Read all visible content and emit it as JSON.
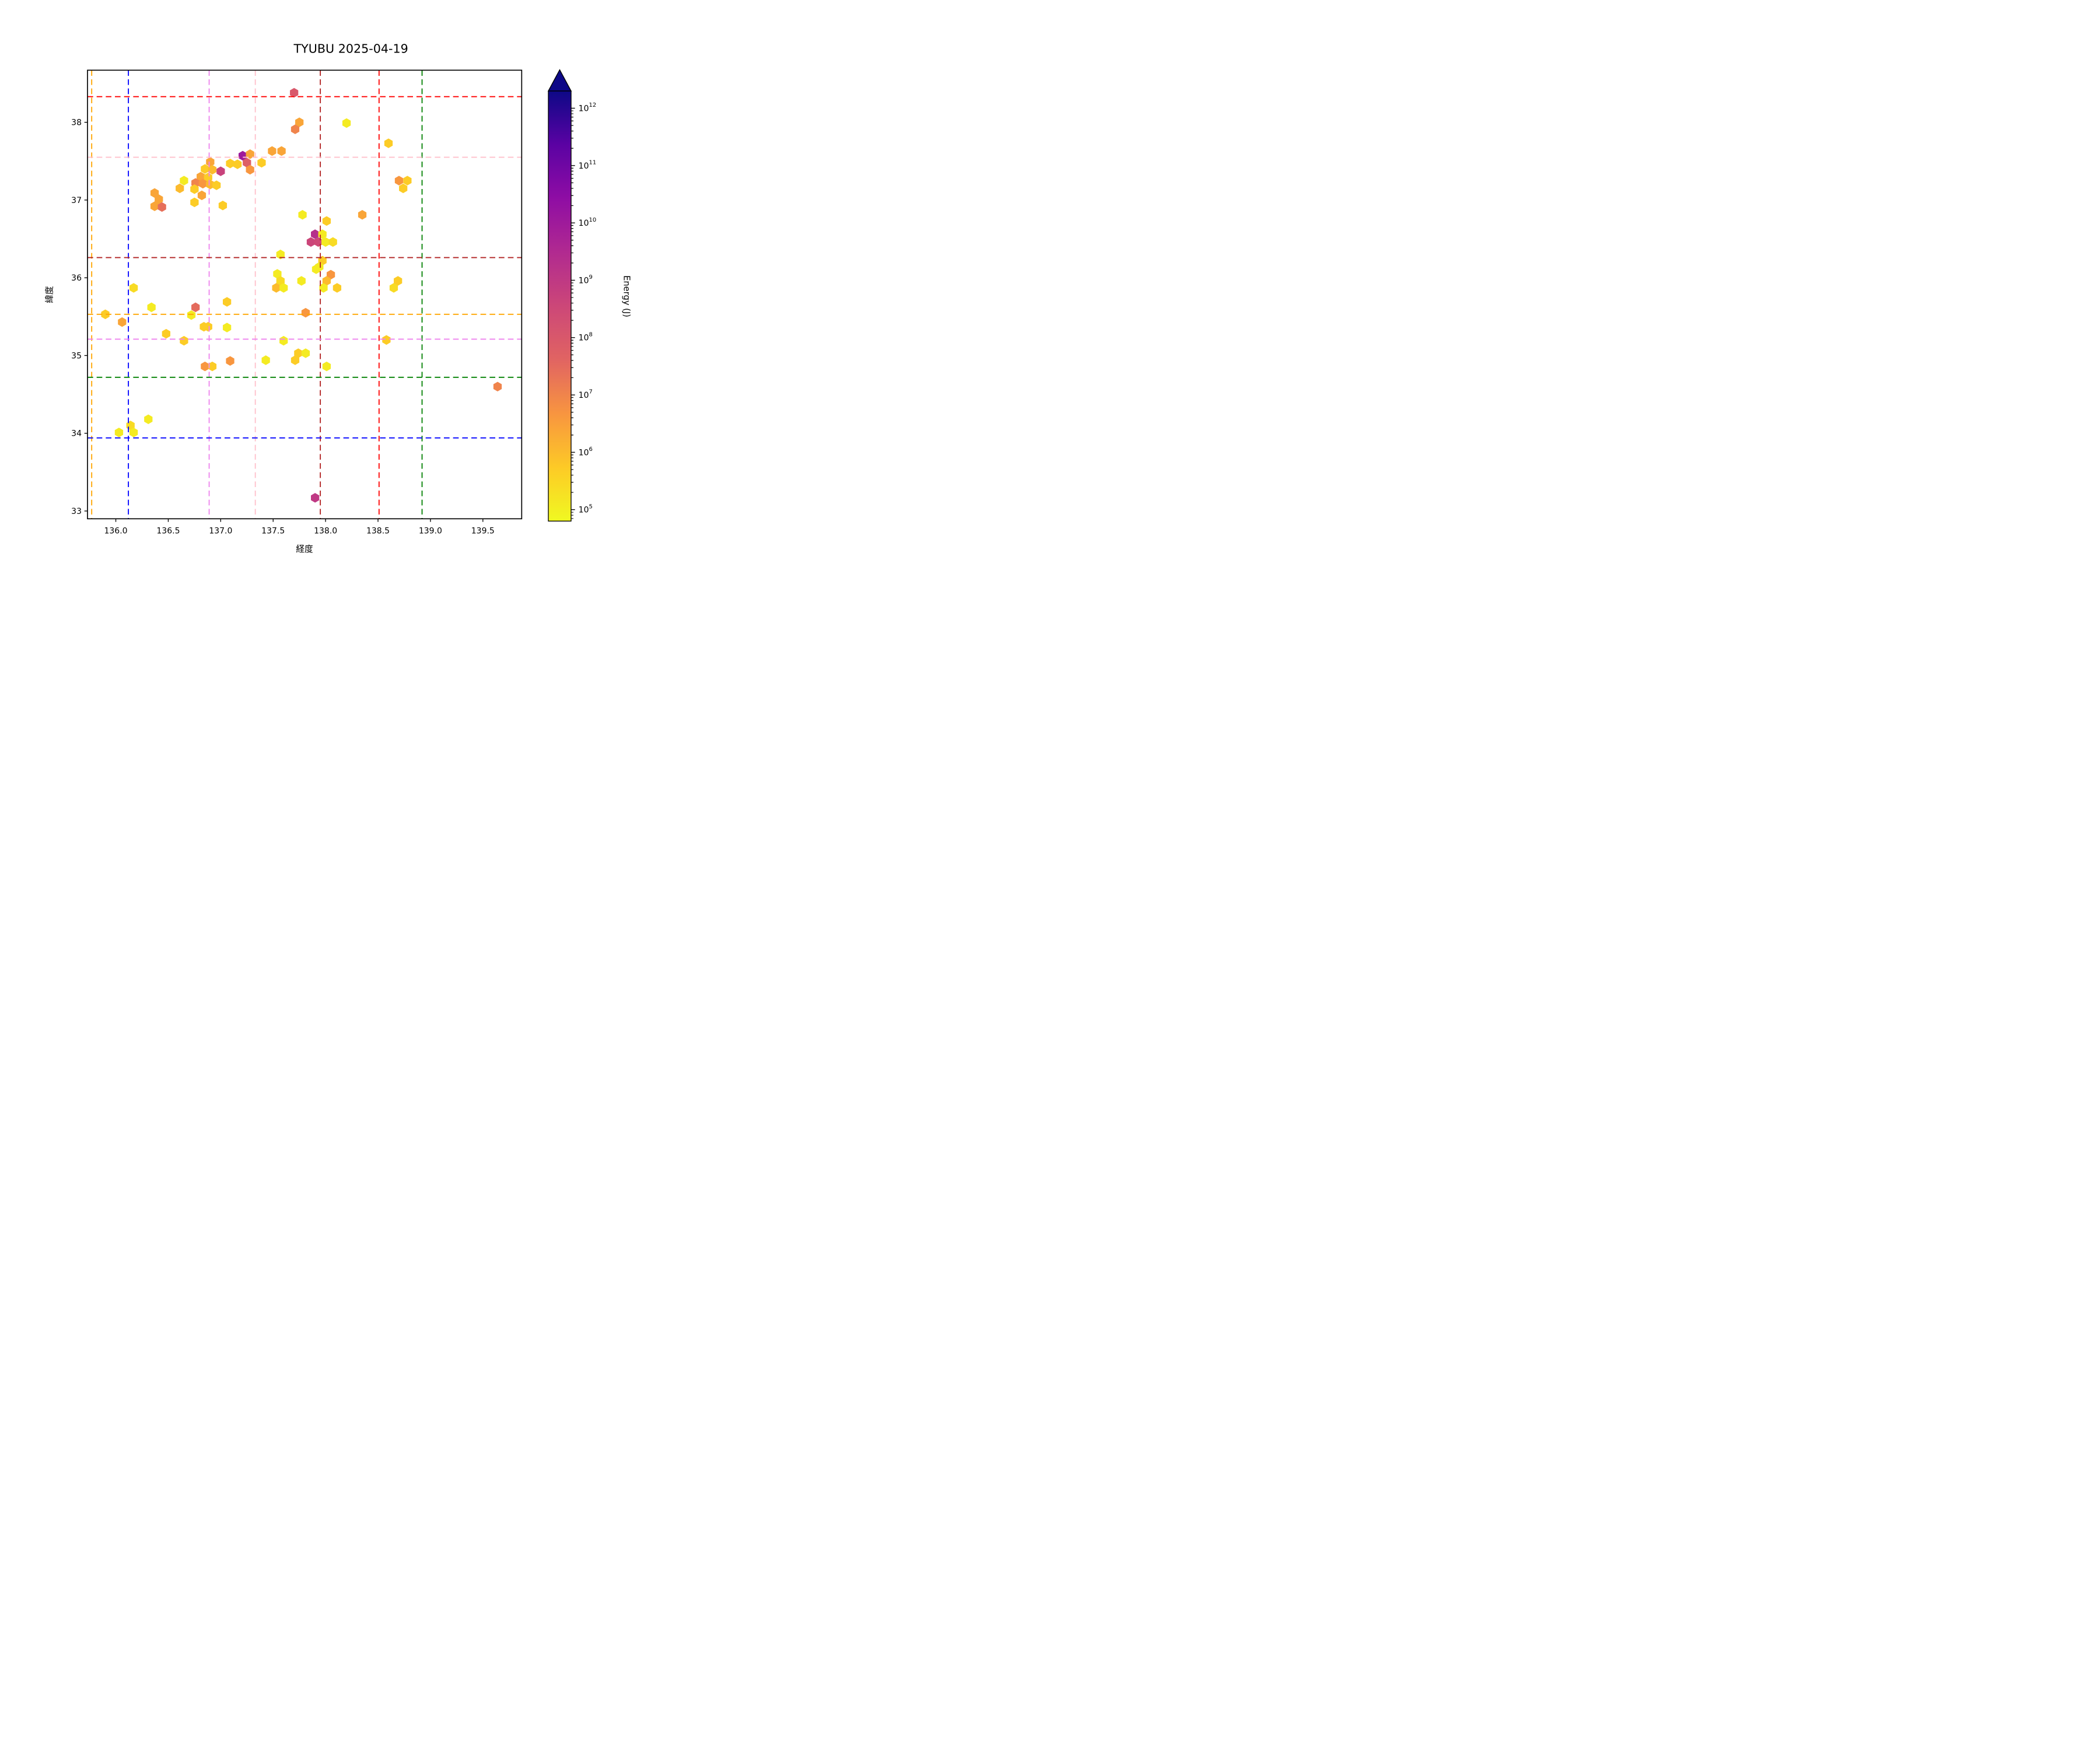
{
  "title": "TYUBU 2025-04-19",
  "chart_data": {
    "type": "scatter",
    "marker": "hexagon",
    "title": "TYUBU 2025-04-19",
    "xlabel": "経度",
    "ylabel": "緯度",
    "xlim": [
      135.73,
      139.87
    ],
    "ylim": [
      32.9,
      38.67
    ],
    "xticks": [
      136.0,
      136.5,
      137.0,
      137.5,
      138.0,
      138.5,
      139.0,
      139.5
    ],
    "xtick_labels": [
      "136.0",
      "136.5",
      "137.0",
      "137.5",
      "138.0",
      "138.5",
      "139.0",
      "139.5"
    ],
    "yticks": [
      33,
      34,
      35,
      36,
      37,
      38
    ],
    "ytick_labels": [
      "33",
      "34",
      "35",
      "36",
      "37",
      "38"
    ],
    "grid": false,
    "legend": "none",
    "colorbar": {
      "label": "Energy (J)",
      "scale": "log",
      "colormap": "plasma_r",
      "extend": "max",
      "range_exponents": [
        4.8,
        12.3
      ],
      "tick_base": "10",
      "tick_exponents": [
        5,
        6,
        7,
        8,
        9,
        10,
        11,
        12
      ]
    },
    "reference_lines": {
      "style": "dashed",
      "vertical": [
        {
          "x": 135.77,
          "color": "#ffa500"
        },
        {
          "x": 136.12,
          "color": "#0000ff"
        },
        {
          "x": 136.89,
          "color": "#ee82ee"
        },
        {
          "x": 137.33,
          "color": "#ffc0cb"
        },
        {
          "x": 137.95,
          "color": "#b22222"
        },
        {
          "x": 138.51,
          "color": "#ff0000"
        },
        {
          "x": 138.92,
          "color": "#008000"
        }
      ],
      "horizontal": [
        {
          "y": 38.33,
          "color": "#ff0000"
        },
        {
          "y": 37.55,
          "color": "#ffc0cb"
        },
        {
          "y": 36.26,
          "color": "#b22222"
        },
        {
          "y": 35.53,
          "color": "#ffa500"
        },
        {
          "y": 35.21,
          "color": "#ee82ee"
        },
        {
          "y": 34.72,
          "color": "#008000"
        },
        {
          "y": 33.94,
          "color": "#0000ff"
        }
      ]
    },
    "points": [
      {
        "lon": 137.7,
        "lat": 38.38,
        "energy": 100000000.0
      },
      {
        "lon": 137.75,
        "lat": 38.0,
        "energy": 2500000.0
      },
      {
        "lon": 137.71,
        "lat": 37.91,
        "energy": 10000000.0
      },
      {
        "lon": 138.2,
        "lat": 37.99,
        "energy": 120000.0
      },
      {
        "lon": 138.6,
        "lat": 37.73,
        "energy": 500000.0
      },
      {
        "lon": 138.7,
        "lat": 37.25,
        "energy": 4500000.0
      },
      {
        "lon": 138.78,
        "lat": 37.25,
        "energy": 500000.0
      },
      {
        "lon": 138.74,
        "lat": 37.15,
        "energy": 500000.0
      },
      {
        "lon": 137.49,
        "lat": 37.63,
        "energy": 2500000.0
      },
      {
        "lon": 137.58,
        "lat": 37.63,
        "energy": 2500000.0
      },
      {
        "lon": 137.21,
        "lat": 37.57,
        "energy": 10000000000.0
      },
      {
        "lon": 137.28,
        "lat": 37.59,
        "energy": 2500000.0
      },
      {
        "lon": 137.25,
        "lat": 37.48,
        "energy": 60000000.0
      },
      {
        "lon": 137.28,
        "lat": 37.39,
        "energy": 4500000.0
      },
      {
        "lon": 137.39,
        "lat": 37.48,
        "energy": 500000.0
      },
      {
        "lon": 137.09,
        "lat": 37.47,
        "energy": 500000.0
      },
      {
        "lon": 137.16,
        "lat": 37.46,
        "energy": 500000.0
      },
      {
        "lon": 136.9,
        "lat": 37.49,
        "energy": 2500000.0
      },
      {
        "lon": 136.85,
        "lat": 37.4,
        "energy": 500000.0
      },
      {
        "lon": 136.92,
        "lat": 37.39,
        "energy": 1000000.0
      },
      {
        "lon": 137.0,
        "lat": 37.37,
        "energy": 500000000.0
      },
      {
        "lon": 136.81,
        "lat": 37.3,
        "energy": 2500000.0
      },
      {
        "lon": 136.88,
        "lat": 37.29,
        "energy": 500000.0
      },
      {
        "lon": 136.76,
        "lat": 37.22,
        "energy": 10000000.0
      },
      {
        "lon": 136.83,
        "lat": 37.21,
        "energy": 4500000.0
      },
      {
        "lon": 136.9,
        "lat": 37.2,
        "energy": 1000000.0
      },
      {
        "lon": 136.96,
        "lat": 37.19,
        "energy": 500000.0
      },
      {
        "lon": 136.65,
        "lat": 37.25,
        "energy": 120000.0
      },
      {
        "lon": 136.61,
        "lat": 37.15,
        "energy": 1000000.0
      },
      {
        "lon": 136.75,
        "lat": 37.14,
        "energy": 500000.0
      },
      {
        "lon": 136.82,
        "lat": 37.06,
        "energy": 2500000.0
      },
      {
        "lon": 136.75,
        "lat": 36.97,
        "energy": 500000.0
      },
      {
        "lon": 137.02,
        "lat": 36.93,
        "energy": 500000.0
      },
      {
        "lon": 136.37,
        "lat": 37.09,
        "energy": 2500000.0
      },
      {
        "lon": 136.41,
        "lat": 37.01,
        "energy": 2500000.0
      },
      {
        "lon": 136.37,
        "lat": 36.92,
        "energy": 2500000.0
      },
      {
        "lon": 136.44,
        "lat": 36.91,
        "energy": 25000000.0
      },
      {
        "lon": 137.78,
        "lat": 36.81,
        "energy": 120000.0
      },
      {
        "lon": 138.01,
        "lat": 36.73,
        "energy": 500000.0
      },
      {
        "lon": 138.35,
        "lat": 36.81,
        "energy": 2500000.0
      },
      {
        "lon": 137.9,
        "lat": 36.56,
        "energy": 2000000000.0
      },
      {
        "lon": 137.97,
        "lat": 36.56,
        "energy": 120000.0
      },
      {
        "lon": 137.86,
        "lat": 36.46,
        "energy": 400000000.0
      },
      {
        "lon": 137.93,
        "lat": 36.46,
        "energy": 300000000.0
      },
      {
        "lon": 138.0,
        "lat": 36.46,
        "energy": 120000.0
      },
      {
        "lon": 138.07,
        "lat": 36.46,
        "energy": 250000.0
      },
      {
        "lon": 137.57,
        "lat": 36.3,
        "energy": 120000.0
      },
      {
        "lon": 137.97,
        "lat": 36.22,
        "energy": 500000.0
      },
      {
        "lon": 137.94,
        "lat": 36.14,
        "energy": 120000.0
      },
      {
        "lon": 137.91,
        "lat": 36.11,
        "energy": 120000.0
      },
      {
        "lon": 138.05,
        "lat": 36.04,
        "energy": 4500000.0
      },
      {
        "lon": 138.01,
        "lat": 35.96,
        "energy": 1000000.0
      },
      {
        "lon": 137.98,
        "lat": 35.87,
        "energy": 120000.0
      },
      {
        "lon": 138.11,
        "lat": 35.87,
        "energy": 500000.0
      },
      {
        "lon": 137.77,
        "lat": 35.96,
        "energy": 120000.0
      },
      {
        "lon": 137.54,
        "lat": 36.05,
        "energy": 120000.0
      },
      {
        "lon": 137.57,
        "lat": 35.96,
        "energy": 250000.0
      },
      {
        "lon": 137.53,
        "lat": 35.87,
        "energy": 1000000.0
      },
      {
        "lon": 137.6,
        "lat": 35.87,
        "energy": 120000.0
      },
      {
        "lon": 138.69,
        "lat": 35.96,
        "energy": 500000.0
      },
      {
        "lon": 138.65,
        "lat": 35.87,
        "energy": 250000.0
      },
      {
        "lon": 137.81,
        "lat": 35.55,
        "energy": 4500000.0
      },
      {
        "lon": 138.58,
        "lat": 35.2,
        "energy": 500000.0
      },
      {
        "lon": 136.17,
        "lat": 35.87,
        "energy": 250000.0
      },
      {
        "lon": 136.34,
        "lat": 35.62,
        "energy": 120000.0
      },
      {
        "lon": 135.9,
        "lat": 35.53,
        "energy": 500000.0
      },
      {
        "lon": 136.06,
        "lat": 35.43,
        "energy": 2500000.0
      },
      {
        "lon": 136.76,
        "lat": 35.62,
        "energy": 30000000.0
      },
      {
        "lon": 136.72,
        "lat": 35.52,
        "energy": 120000.0
      },
      {
        "lon": 136.48,
        "lat": 35.28,
        "energy": 500000.0
      },
      {
        "lon": 136.65,
        "lat": 35.19,
        "energy": 500000.0
      },
      {
        "lon": 136.84,
        "lat": 35.37,
        "energy": 500000.0
      },
      {
        "lon": 136.88,
        "lat": 35.37,
        "energy": 500000.0
      },
      {
        "lon": 137.06,
        "lat": 35.69,
        "energy": 500000.0
      },
      {
        "lon": 137.06,
        "lat": 35.36,
        "energy": 120000.0
      },
      {
        "lon": 137.6,
        "lat": 35.19,
        "energy": 120000.0
      },
      {
        "lon": 137.09,
        "lat": 34.93,
        "energy": 4500000.0
      },
      {
        "lon": 136.85,
        "lat": 34.86,
        "energy": 4500000.0
      },
      {
        "lon": 136.92,
        "lat": 34.86,
        "energy": 500000.0
      },
      {
        "lon": 137.43,
        "lat": 34.94,
        "energy": 120000.0
      },
      {
        "lon": 137.74,
        "lat": 35.03,
        "energy": 500000.0
      },
      {
        "lon": 137.81,
        "lat": 35.03,
        "energy": 120000.0
      },
      {
        "lon": 137.71,
        "lat": 34.94,
        "energy": 500000.0
      },
      {
        "lon": 138.01,
        "lat": 34.86,
        "energy": 120000.0
      },
      {
        "lon": 136.03,
        "lat": 34.01,
        "energy": 120000.0
      },
      {
        "lon": 136.14,
        "lat": 34.1,
        "energy": 250000.0
      },
      {
        "lon": 136.17,
        "lat": 34.01,
        "energy": 120000.0
      },
      {
        "lon": 136.31,
        "lat": 34.18,
        "energy": 120000.0
      },
      {
        "lon": 137.9,
        "lat": 33.17,
        "energy": 1000000000.0
      },
      {
        "lon": 139.64,
        "lat": 34.6,
        "energy": 10000000.0
      }
    ]
  }
}
